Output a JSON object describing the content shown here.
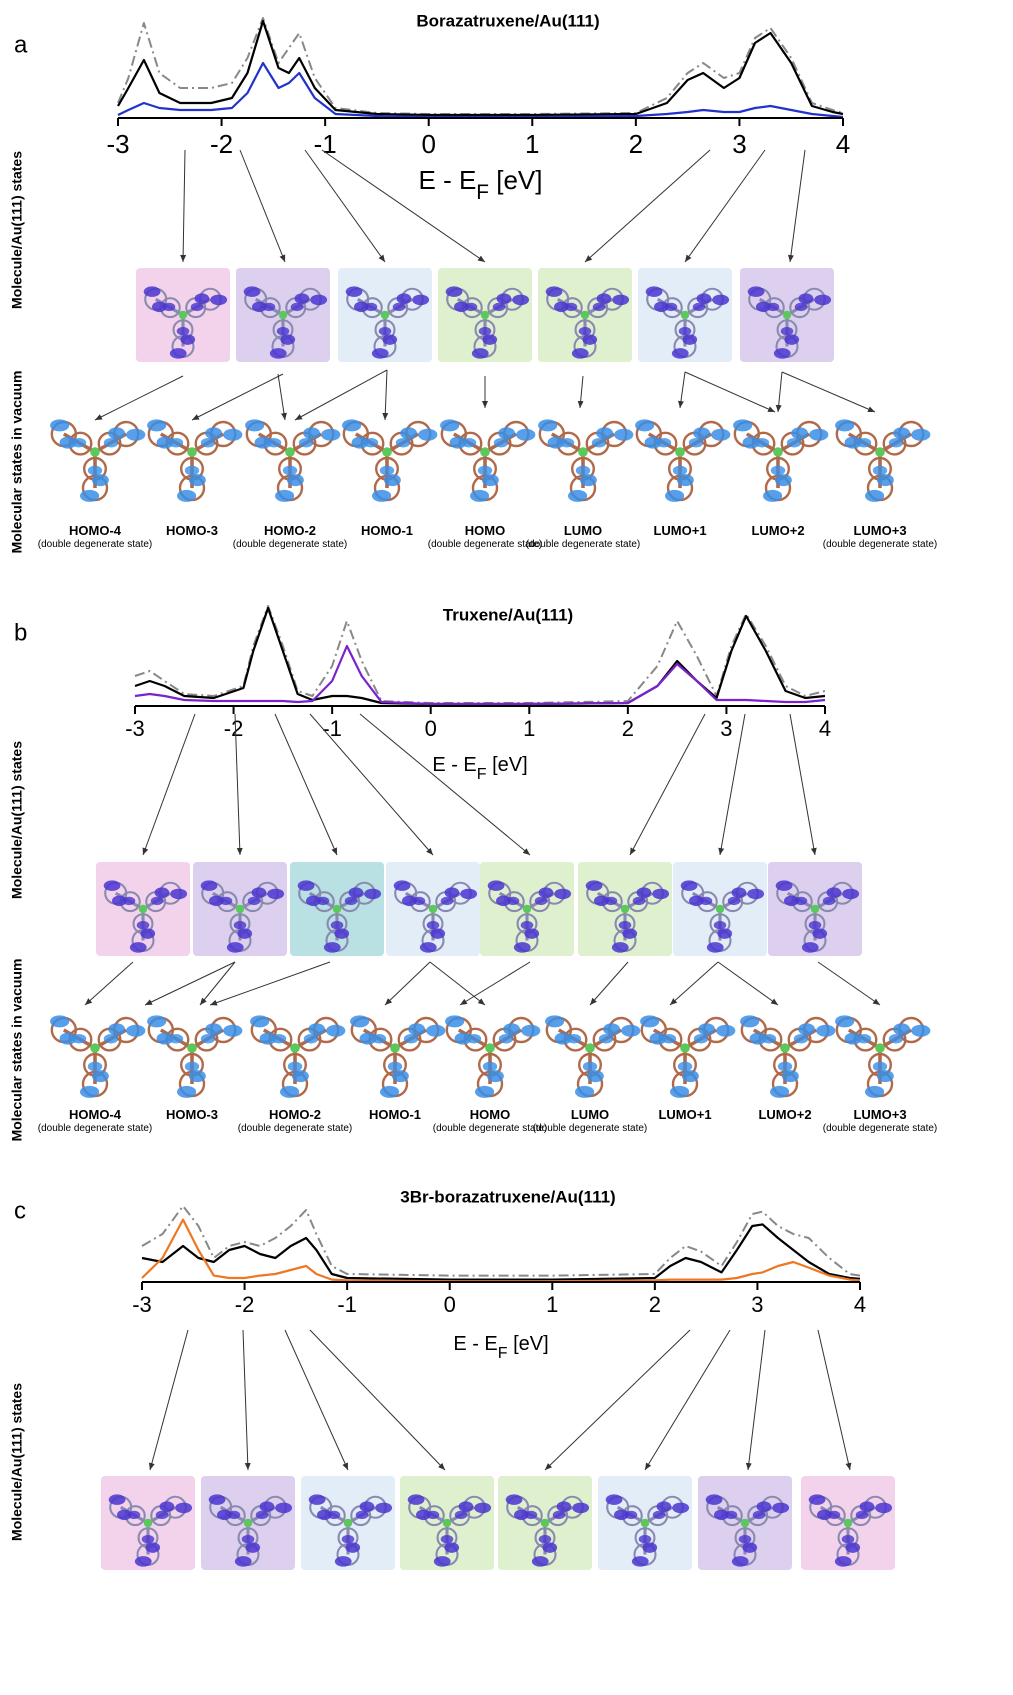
{
  "chart_data": [
    {
      "type": "line",
      "title": "Borazatruxene/Au(111)",
      "x_label": [
        "E - E",
        "F",
        " [eV]"
      ],
      "xlim": [
        -3,
        4
      ],
      "xticks": [
        -3,
        -2,
        -1,
        0,
        1,
        2,
        3,
        4
      ],
      "ylim": [
        0,
        1
      ],
      "x": [
        -3,
        -2.9,
        -2.75,
        -2.6,
        -2.4,
        -2.1,
        -1.9,
        -1.75,
        -1.6,
        -1.45,
        -1.35,
        -1.25,
        -1.1,
        -0.9,
        -0.5,
        0,
        1,
        2,
        2.3,
        2.5,
        2.65,
        2.85,
        3,
        3.15,
        3.3,
        3.5,
        3.7,
        3.9,
        4
      ],
      "series": [
        {
          "color": "#888888",
          "style": "dash-dot",
          "values": [
            0.15,
            0.4,
            0.95,
            0.45,
            0.3,
            0.3,
            0.35,
            0.6,
            1.0,
            0.55,
            0.7,
            0.85,
            0.4,
            0.1,
            0.05,
            0.04,
            0.04,
            0.05,
            0.2,
            0.45,
            0.55,
            0.4,
            0.45,
            0.8,
            0.9,
            0.6,
            0.15,
            0.08,
            0.05
          ]
        },
        {
          "color": "#000000",
          "style": "solid",
          "values": [
            0.12,
            0.3,
            0.58,
            0.25,
            0.15,
            0.15,
            0.2,
            0.45,
            0.97,
            0.5,
            0.45,
            0.6,
            0.3,
            0.08,
            0.04,
            0.03,
            0.03,
            0.04,
            0.15,
            0.38,
            0.45,
            0.3,
            0.4,
            0.75,
            0.85,
            0.55,
            0.12,
            0.06,
            0.04
          ]
        },
        {
          "color": "#2233cc",
          "style": "solid",
          "values": [
            0.03,
            0.08,
            0.15,
            0.1,
            0.08,
            0.08,
            0.1,
            0.25,
            0.55,
            0.3,
            0.35,
            0.45,
            0.2,
            0.04,
            0.02,
            0.01,
            0.01,
            0.02,
            0.04,
            0.06,
            0.08,
            0.06,
            0.06,
            0.1,
            0.12,
            0.08,
            0.04,
            0.02,
            0.01
          ]
        }
      ]
    },
    {
      "type": "line",
      "title": "Truxene/Au(111)",
      "x_label": [
        "E - E",
        "F",
        " [eV]"
      ],
      "xlim": [
        -3,
        4
      ],
      "xticks": [
        -3,
        -2,
        -1,
        0,
        1,
        2,
        3,
        4
      ],
      "ylim": [
        0,
        1
      ],
      "x": [
        -3,
        -2.85,
        -2.7,
        -2.5,
        -2.2,
        -1.9,
        -1.8,
        -1.65,
        -1.5,
        -1.35,
        -1.2,
        -1,
        -0.85,
        -0.7,
        -0.5,
        0,
        1,
        2,
        2.3,
        2.5,
        2.7,
        2.9,
        3.05,
        3.2,
        3.4,
        3.6,
        3.8,
        4
      ],
      "series": [
        {
          "color": "#888888",
          "style": "dash-dot",
          "values": [
            0.3,
            0.35,
            0.25,
            0.12,
            0.1,
            0.2,
            0.6,
            1.0,
            0.6,
            0.15,
            0.1,
            0.4,
            0.85,
            0.45,
            0.05,
            0.03,
            0.03,
            0.05,
            0.4,
            0.85,
            0.5,
            0.1,
            0.6,
            0.92,
            0.6,
            0.2,
            0.1,
            0.15
          ]
        },
        {
          "color": "#000000",
          "style": "solid",
          "values": [
            0.2,
            0.25,
            0.2,
            0.1,
            0.08,
            0.18,
            0.55,
            0.98,
            0.55,
            0.12,
            0.06,
            0.1,
            0.1,
            0.08,
            0.03,
            0.02,
            0.02,
            0.03,
            0.2,
            0.45,
            0.25,
            0.08,
            0.55,
            0.9,
            0.55,
            0.15,
            0.08,
            0.1
          ]
        },
        {
          "color": "#7a22cc",
          "style": "solid",
          "values": [
            0.1,
            0.12,
            0.1,
            0.06,
            0.05,
            0.05,
            0.05,
            0.05,
            0.05,
            0.04,
            0.05,
            0.25,
            0.6,
            0.3,
            0.04,
            0.02,
            0.02,
            0.03,
            0.2,
            0.42,
            0.25,
            0.06,
            0.06,
            0.06,
            0.05,
            0.04,
            0.04,
            0.06
          ]
        }
      ]
    },
    {
      "type": "line",
      "title": "3Br-borazatruxene/Au(111)",
      "x_label": [
        "E - E",
        "F",
        " [eV]"
      ],
      "xlim": [
        -3,
        4
      ],
      "xticks": [
        -3,
        -2,
        -1,
        0,
        1,
        2,
        3,
        4
      ],
      "ylim": [
        0,
        1
      ],
      "x": [
        -3,
        -2.8,
        -2.6,
        -2.45,
        -2.3,
        -2.15,
        -2,
        -1.85,
        -1.7,
        -1.55,
        -1.4,
        -1.3,
        -1.15,
        -1,
        0,
        1,
        2,
        2.15,
        2.3,
        2.45,
        2.65,
        2.8,
        2.95,
        3.05,
        3.2,
        3.35,
        3.5,
        3.7,
        3.9,
        4
      ],
      "series": [
        {
          "color": "#888888",
          "style": "dash-dot",
          "values": [
            0.45,
            0.6,
            0.95,
            0.7,
            0.3,
            0.45,
            0.5,
            0.45,
            0.55,
            0.7,
            0.9,
            0.6,
            0.2,
            0.1,
            0.08,
            0.08,
            0.1,
            0.3,
            0.45,
            0.38,
            0.2,
            0.5,
            0.85,
            0.88,
            0.7,
            0.6,
            0.55,
            0.3,
            0.1,
            0.08
          ]
        },
        {
          "color": "#000000",
          "style": "solid",
          "values": [
            0.3,
            0.25,
            0.45,
            0.3,
            0.25,
            0.4,
            0.45,
            0.35,
            0.3,
            0.45,
            0.55,
            0.4,
            0.1,
            0.05,
            0.03,
            0.03,
            0.05,
            0.2,
            0.3,
            0.25,
            0.12,
            0.4,
            0.7,
            0.72,
            0.55,
            0.4,
            0.25,
            0.1,
            0.05,
            0.04
          ]
        },
        {
          "color": "#ee7722",
          "style": "solid",
          "values": [
            0.05,
            0.3,
            0.78,
            0.4,
            0.08,
            0.05,
            0.05,
            0.08,
            0.1,
            0.15,
            0.2,
            0.1,
            0.03,
            0.02,
            0.01,
            0.01,
            0.02,
            0.03,
            0.03,
            0.03,
            0.03,
            0.05,
            0.1,
            0.12,
            0.2,
            0.25,
            0.18,
            0.08,
            0.03,
            0.02
          ]
        }
      ]
    }
  ],
  "panels": [
    {
      "letter": "a",
      "side_labels": [
        "Molecule/Au(111) states",
        "Molecular states in vacuum"
      ],
      "tiles": [
        "#f3d3ec",
        "#ddd0ee",
        "#e3edf8",
        "#dff0cf",
        "#dff0cf",
        "#e3edf8",
        "#ddd0ee"
      ],
      "orbitals": [
        {
          "name": "HOMO-4",
          "note": "(double degenerate state)"
        },
        {
          "name": "HOMO-3"
        },
        {
          "name": "HOMO-2",
          "note": "(double degenerate state)"
        },
        {
          "name": "HOMO-1"
        },
        {
          "name": "HOMO",
          "note": "(double degenerate state)"
        },
        {
          "name": "LUMO",
          "note": "(double degenerate state)"
        },
        {
          "name": "LUMO+1"
        },
        {
          "name": "LUMO+2"
        },
        {
          "name": "LUMO+3",
          "note": "(double degenerate state)"
        }
      ]
    },
    {
      "letter": "b",
      "side_labels": [
        "Molecule/Au(111) states",
        "Molecular states in vacuum"
      ],
      "tiles": [
        "#f3d3ec",
        "#ddd0ee",
        "#b9e0e2",
        "#e3edf8",
        "#dff0cf",
        "#dff0cf",
        "#e3edf8",
        "#ddd0ee"
      ],
      "orbitals": [
        {
          "name": "HOMO-4",
          "note": "(double degenerate state)"
        },
        {
          "name": "HOMO-3"
        },
        {
          "name": "HOMO-2",
          "note": "(double degenerate state)"
        },
        {
          "name": "HOMO-1"
        },
        {
          "name": "HOMO",
          "note": "(double degenerate state)"
        },
        {
          "name": "LUMO",
          "note": "(double degenerate state)"
        },
        {
          "name": "LUMO+1"
        },
        {
          "name": "LUMO+2"
        },
        {
          "name": "LUMO+3",
          "note": "(double degenerate state)"
        }
      ]
    },
    {
      "letter": "c",
      "side_labels": [
        "Molecule/Au(111) states"
      ],
      "tiles": [
        "#f3d3ec",
        "#ddd0ee",
        "#e3edf8",
        "#dff0cf",
        "#dff0cf",
        "#e3edf8",
        "#ddd0ee",
        "#f3d3ec"
      ]
    }
  ]
}
